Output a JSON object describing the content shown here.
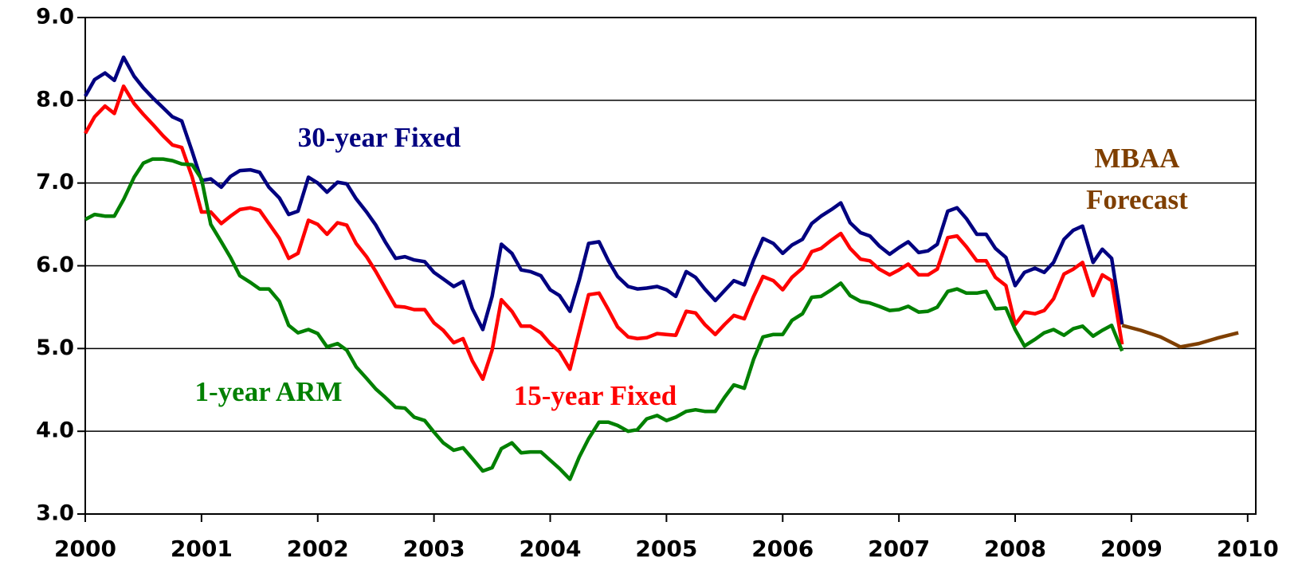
{
  "chart_data": {
    "type": "line",
    "x": [
      2000.0,
      2000.08,
      2000.17,
      2000.25,
      2000.33,
      2000.42,
      2000.5,
      2000.58,
      2000.67,
      2000.75,
      2000.83,
      2000.92,
      2001.0,
      2001.08,
      2001.17,
      2001.25,
      2001.33,
      2001.42,
      2001.5,
      2001.58,
      2001.67,
      2001.75,
      2001.83,
      2001.92,
      2002.0,
      2002.08,
      2002.17,
      2002.25,
      2002.33,
      2002.42,
      2002.5,
      2002.58,
      2002.67,
      2002.75,
      2002.83,
      2002.92,
      2003.0,
      2003.08,
      2003.17,
      2003.25,
      2003.33,
      2003.42,
      2003.5,
      2003.58,
      2003.67,
      2003.75,
      2003.83,
      2003.92,
      2004.0,
      2004.08,
      2004.17,
      2004.25,
      2004.33,
      2004.42,
      2004.5,
      2004.58,
      2004.67,
      2004.75,
      2004.83,
      2004.92,
      2005.0,
      2005.08,
      2005.17,
      2005.25,
      2005.33,
      2005.42,
      2005.5,
      2005.58,
      2005.67,
      2005.75,
      2005.83,
      2005.92,
      2006.0,
      2006.08,
      2006.17,
      2006.25,
      2006.33,
      2006.42,
      2006.5,
      2006.58,
      2006.67,
      2006.75,
      2006.83,
      2006.92,
      2007.0,
      2007.08,
      2007.17,
      2007.25,
      2007.33,
      2007.42,
      2007.5,
      2007.58,
      2007.67,
      2007.75,
      2007.83,
      2007.92,
      2008.0,
      2008.08,
      2008.17,
      2008.25,
      2008.33,
      2008.42,
      2008.5,
      2008.58,
      2008.67,
      2008.75,
      2008.83,
      2008.92
    ],
    "series": [
      {
        "name": "30-year Fixed",
        "color": "#000080",
        "values": [
          8.05,
          8.25,
          8.33,
          8.24,
          8.52,
          8.29,
          8.15,
          8.03,
          7.91,
          7.8,
          7.75,
          7.38,
          7.03,
          7.05,
          6.95,
          7.08,
          7.15,
          7.16,
          7.13,
          6.95,
          6.82,
          6.62,
          6.66,
          7.07,
          7.0,
          6.89,
          7.01,
          6.99,
          6.81,
          6.65,
          6.49,
          6.29,
          6.09,
          6.11,
          6.07,
          6.05,
          5.92,
          5.84,
          5.75,
          5.81,
          5.48,
          5.23,
          5.63,
          6.26,
          6.15,
          5.95,
          5.93,
          5.88,
          5.71,
          5.64,
          5.45,
          5.83,
          6.27,
          6.29,
          6.06,
          5.87,
          5.75,
          5.72,
          5.73,
          5.75,
          5.71,
          5.63,
          5.93,
          5.86,
          5.72,
          5.58,
          5.7,
          5.82,
          5.77,
          6.07,
          6.33,
          6.27,
          6.15,
          6.25,
          6.32,
          6.51,
          6.6,
          6.68,
          6.76,
          6.52,
          6.4,
          6.36,
          6.24,
          6.14,
          6.22,
          6.29,
          6.16,
          6.18,
          6.26,
          6.66,
          6.7,
          6.57,
          6.38,
          6.38,
          6.21,
          6.1,
          5.76,
          5.92,
          5.97,
          5.92,
          6.04,
          6.32,
          6.43,
          6.48,
          6.04,
          6.2,
          6.09,
          5.29
        ]
      },
      {
        "name": "15-year Fixed",
        "color": "#ff0000",
        "values": [
          7.6,
          7.8,
          7.93,
          7.84,
          8.17,
          7.96,
          7.83,
          7.71,
          7.57,
          7.46,
          7.43,
          7.07,
          6.65,
          6.65,
          6.51,
          6.6,
          6.68,
          6.7,
          6.67,
          6.51,
          6.33,
          6.09,
          6.15,
          6.55,
          6.5,
          6.38,
          6.52,
          6.49,
          6.27,
          6.11,
          5.93,
          5.73,
          5.51,
          5.5,
          5.47,
          5.47,
          5.31,
          5.22,
          5.07,
          5.12,
          4.85,
          4.63,
          4.98,
          5.59,
          5.45,
          5.27,
          5.27,
          5.19,
          5.06,
          4.96,
          4.75,
          5.2,
          5.65,
          5.67,
          5.47,
          5.26,
          5.14,
          5.12,
          5.13,
          5.18,
          5.17,
          5.16,
          5.45,
          5.43,
          5.29,
          5.17,
          5.29,
          5.4,
          5.36,
          5.63,
          5.87,
          5.82,
          5.71,
          5.86,
          5.97,
          6.17,
          6.21,
          6.31,
          6.39,
          6.21,
          6.08,
          6.06,
          5.96,
          5.89,
          5.95,
          6.02,
          5.89,
          5.89,
          5.96,
          6.34,
          6.36,
          6.23,
          6.06,
          6.06,
          5.86,
          5.76,
          5.29,
          5.44,
          5.42,
          5.46,
          5.6,
          5.9,
          5.96,
          6.04,
          5.64,
          5.89,
          5.82,
          5.05
        ]
      },
      {
        "name": "1-year ARM",
        "color": "#008000",
        "values": [
          6.56,
          6.62,
          6.6,
          6.6,
          6.8,
          7.07,
          7.24,
          7.29,
          7.29,
          7.27,
          7.23,
          7.22,
          7.05,
          6.5,
          6.29,
          6.1,
          5.88,
          5.8,
          5.72,
          5.72,
          5.57,
          5.28,
          5.19,
          5.23,
          5.18,
          5.02,
          5.06,
          4.98,
          4.78,
          4.64,
          4.51,
          4.41,
          4.29,
          4.28,
          4.17,
          4.13,
          3.99,
          3.86,
          3.77,
          3.8,
          3.67,
          3.52,
          3.56,
          3.79,
          3.86,
          3.74,
          3.75,
          3.75,
          3.65,
          3.55,
          3.42,
          3.69,
          3.91,
          4.11,
          4.11,
          4.07,
          4.0,
          4.02,
          4.15,
          4.19,
          4.13,
          4.17,
          4.24,
          4.26,
          4.24,
          4.24,
          4.41,
          4.56,
          4.52,
          4.87,
          5.14,
          5.17,
          5.17,
          5.34,
          5.42,
          5.62,
          5.63,
          5.71,
          5.79,
          5.64,
          5.57,
          5.55,
          5.51,
          5.46,
          5.47,
          5.51,
          5.44,
          5.45,
          5.5,
          5.69,
          5.72,
          5.67,
          5.67,
          5.69,
          5.48,
          5.49,
          5.23,
          5.03,
          5.11,
          5.19,
          5.23,
          5.16,
          5.24,
          5.27,
          5.15,
          5.22,
          5.28,
          4.97
        ]
      },
      {
        "name": "MBAA Forecast",
        "color": "#7f3f00",
        "x": [
          2008.92,
          2009.08,
          2009.25,
          2009.42,
          2009.58,
          2009.75,
          2009.92
        ],
        "values": [
          5.28,
          5.22,
          5.14,
          5.02,
          5.06,
          5.13,
          5.19
        ]
      }
    ],
    "xlim": [
      2000,
      2010.07
    ],
    "xticks": [
      2000,
      2001,
      2002,
      2003,
      2004,
      2005,
      2006,
      2007,
      2008,
      2009,
      2010
    ],
    "ylim": [
      3,
      9
    ],
    "yticks": [
      {
        "value": 3,
        "label": "3.0"
      },
      {
        "value": 4,
        "label": "4.0"
      },
      {
        "value": 5,
        "label": "5.0"
      },
      {
        "value": 6,
        "label": "6.0"
      },
      {
        "value": 7,
        "label": "7.0"
      },
      {
        "value": 8,
        "label": "8.0"
      },
      {
        "value": 9,
        "label": "9.0"
      }
    ],
    "grid": true
  }
}
